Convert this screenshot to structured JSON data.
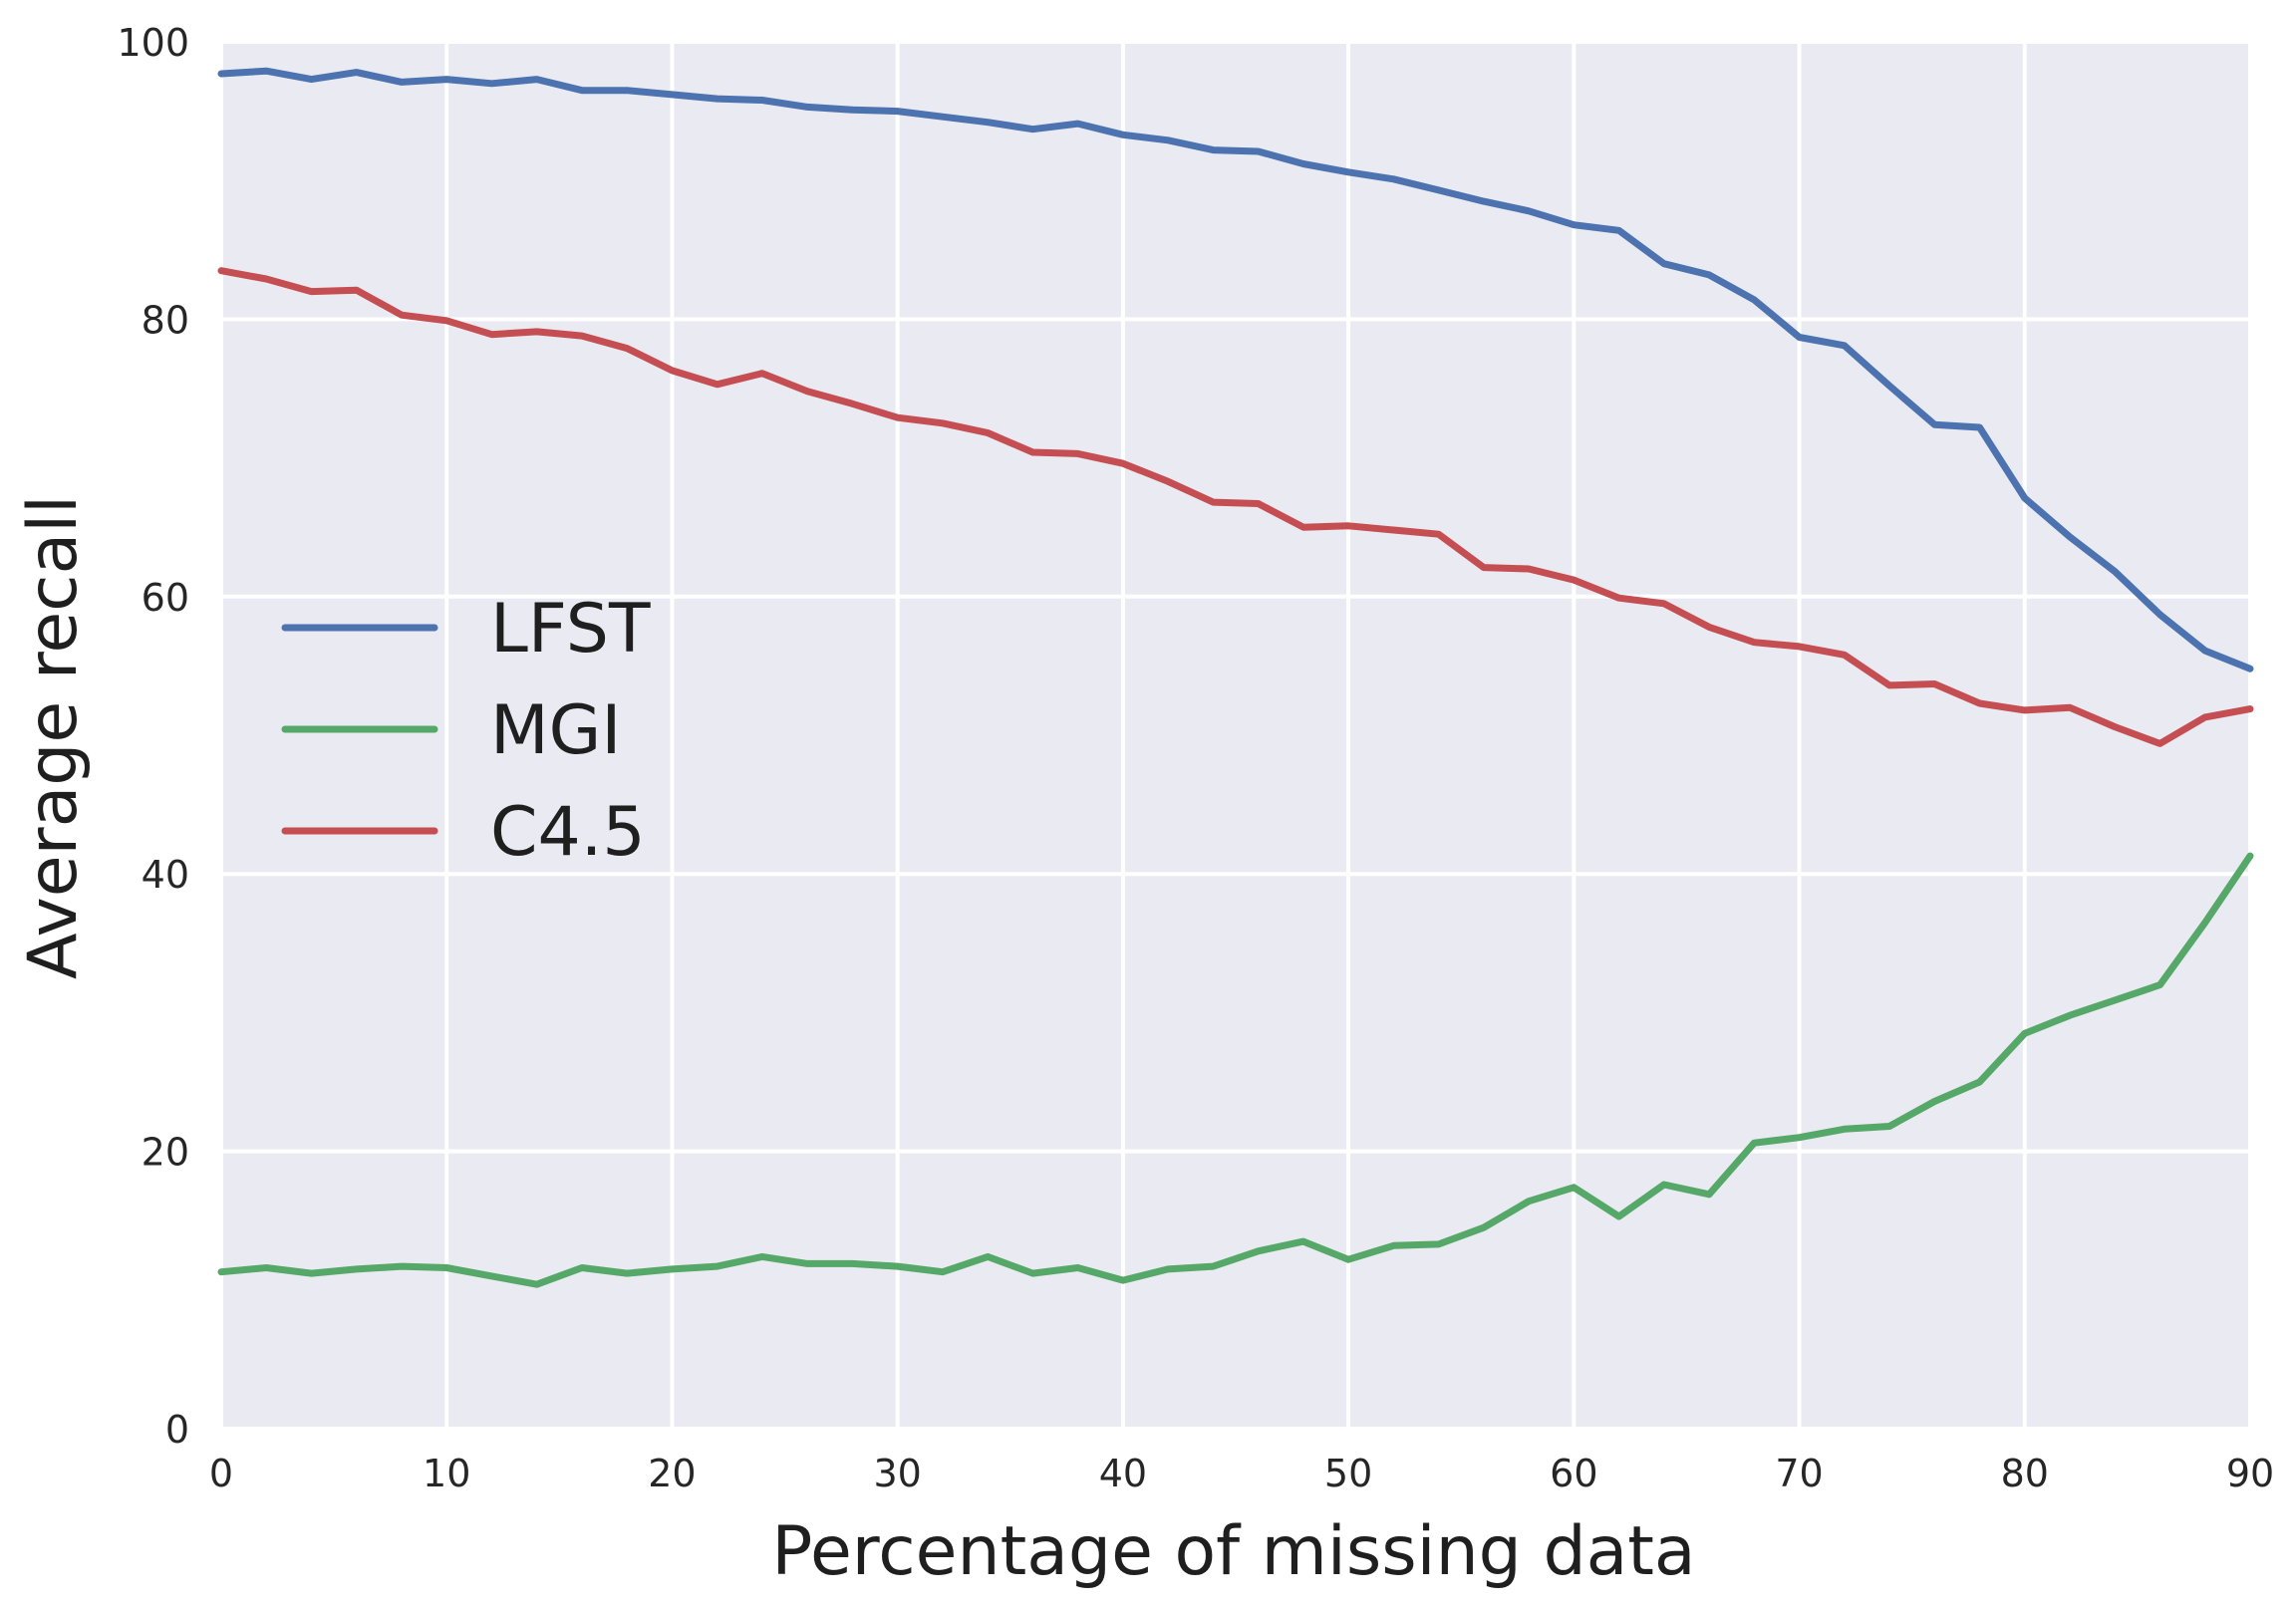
{
  "chart_data": {
    "type": "line",
    "title": "",
    "xlabel": "Percentage of missing data",
    "ylabel": "Average recall",
    "xlim": [
      0,
      90
    ],
    "ylim": [
      0,
      100
    ],
    "xticks": [
      0,
      10,
      20,
      30,
      40,
      50,
      60,
      70,
      80,
      90
    ],
    "yticks": [
      0,
      20,
      40,
      60,
      80,
      100
    ],
    "xtick_labels": [
      "0",
      "10",
      "20",
      "30",
      "40",
      "50",
      "60",
      "70",
      "80",
      "90"
    ],
    "ytick_labels": [
      "0",
      "20",
      "40",
      "60",
      "80",
      "100"
    ],
    "grid": true,
    "legend_position": "center-left",
    "x": [
      0,
      2,
      4,
      6,
      8,
      10,
      12,
      14,
      16,
      18,
      20,
      22,
      24,
      26,
      28,
      30,
      32,
      34,
      36,
      38,
      40,
      42,
      44,
      46,
      48,
      50,
      52,
      54,
      56,
      58,
      60,
      62,
      64,
      66,
      68,
      70,
      72,
      74,
      76,
      78,
      80,
      82,
      84,
      86,
      88,
      90
    ],
    "series": [
      {
        "name": "LFST",
        "color": "#4c72b0",
        "values": [
          97.7,
          97.9,
          97.3,
          97.8,
          97.1,
          97.3,
          97.0,
          97.3,
          96.5,
          96.5,
          96.2,
          95.9,
          95.8,
          95.3,
          95.1,
          95.0,
          94.6,
          94.2,
          93.7,
          94.1,
          93.3,
          92.9,
          92.2,
          92.1,
          91.2,
          90.6,
          90.1,
          89.3,
          88.5,
          87.8,
          86.8,
          86.4,
          84.0,
          83.2,
          81.4,
          78.7,
          78.1,
          75.2,
          72.4,
          72.2,
          67.1,
          64.3,
          61.8,
          58.7,
          56.1,
          54.8
        ]
      },
      {
        "name": "MGI",
        "color": "#55a868",
        "values": [
          11.3,
          11.6,
          11.2,
          11.5,
          11.7,
          11.6,
          11.0,
          10.4,
          11.6,
          11.2,
          11.5,
          11.7,
          12.4,
          11.9,
          11.9,
          11.7,
          11.3,
          12.4,
          11.2,
          11.6,
          10.7,
          11.5,
          11.7,
          12.8,
          13.5,
          12.2,
          13.2,
          13.3,
          14.5,
          16.4,
          17.4,
          15.3,
          17.6,
          16.9,
          20.6,
          21.0,
          21.6,
          21.8,
          23.6,
          25.0,
          28.5,
          29.8,
          30.9,
          32.0,
          36.5,
          41.3
        ]
      },
      {
        "name": "C4.5",
        "color": "#c44e52",
        "values": [
          83.5,
          82.9,
          82.0,
          82.1,
          80.3,
          79.9,
          78.9,
          79.1,
          78.8,
          77.9,
          76.3,
          75.3,
          76.1,
          74.8,
          73.9,
          72.9,
          72.5,
          71.8,
          70.4,
          70.3,
          69.6,
          68.3,
          66.8,
          66.7,
          65.0,
          65.1,
          64.8,
          64.5,
          62.1,
          62.0,
          61.2,
          59.9,
          59.5,
          57.8,
          56.7,
          56.4,
          55.8,
          53.6,
          53.7,
          52.3,
          51.8,
          52.0,
          50.6,
          49.4,
          51.3,
          51.9
        ]
      }
    ]
  }
}
